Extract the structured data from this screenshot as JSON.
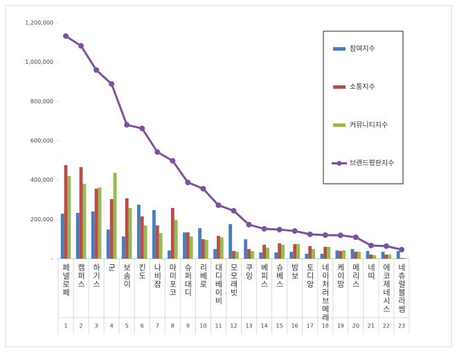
{
  "chart_data": {
    "type": "bar",
    "categories": [
      "페넬로페",
      "캠퍼스",
      "하기스",
      "군",
      "보솜이",
      "킨도",
      "나비잠",
      "마미포코",
      "슈퍼대디",
      "리베로",
      "대디베이비",
      "모모래빗",
      "쿠잉",
      "베피스",
      "슈베스",
      "밤보",
      "토디앙",
      "네이처러브메레",
      "케이맘",
      "메리스",
      "네띠",
      "에코제네시스",
      "네츄럴블라썸"
    ],
    "ranks": [
      1,
      2,
      3,
      4,
      5,
      6,
      7,
      8,
      9,
      10,
      11,
      12,
      13,
      14,
      15,
      16,
      17,
      18,
      19,
      20,
      21,
      22,
      23
    ],
    "series": [
      {
        "name": "참여지수",
        "type": "bar",
        "color": "#4a7ebb",
        "values": [
          229000,
          233000,
          240000,
          148000,
          113000,
          275000,
          247000,
          42000,
          134000,
          155000,
          49000,
          176000,
          99000,
          32000,
          32000,
          35000,
          25000,
          25000,
          42000,
          49000,
          39000,
          35000,
          39000
        ]
      },
      {
        "name": "소통지수",
        "type": "bar",
        "color": "#be4b48",
        "values": [
          476000,
          466000,
          356000,
          303000,
          307000,
          215000,
          169000,
          258000,
          134000,
          99000,
          116000,
          39000,
          49000,
          71000,
          78000,
          74000,
          64000,
          60000,
          39000,
          35000,
          21000,
          21000,
          4000
        ]
      },
      {
        "name": "커뮤니티지수",
        "type": "bar",
        "color": "#98b954",
        "values": [
          420000,
          381000,
          363000,
          437000,
          258000,
          169000,
          131000,
          198000,
          113000,
          95000,
          109000,
          35000,
          39000,
          56000,
          71000,
          74000,
          49000,
          60000,
          42000,
          35000,
          18000,
          21000,
          4000
        ]
      },
      {
        "name": "브랜드평판지수",
        "type": "line",
        "color": "#7d51a1",
        "values": [
          1133000,
          1083000,
          960000,
          889000,
          681000,
          663000,
          543000,
          498000,
          388000,
          356000,
          272000,
          244000,
          173000,
          152000,
          148000,
          141000,
          124000,
          120000,
          119000,
          109000,
          67000,
          64000,
          46000
        ]
      }
    ],
    "ylim": [
      0,
      1200000
    ],
    "yticks": [
      {
        "value": 0,
        "label": "-"
      },
      {
        "value": 200000,
        "label": "200,000"
      },
      {
        "value": 400000,
        "label": "400,000"
      },
      {
        "value": 600000,
        "label": "600,000"
      },
      {
        "value": 800000,
        "label": "800,000"
      },
      {
        "value": 1000000,
        "label": "1,000,000"
      },
      {
        "value": 1200000,
        "label": "1,200,000"
      }
    ],
    "legend": "upper right",
    "grid": false
  }
}
